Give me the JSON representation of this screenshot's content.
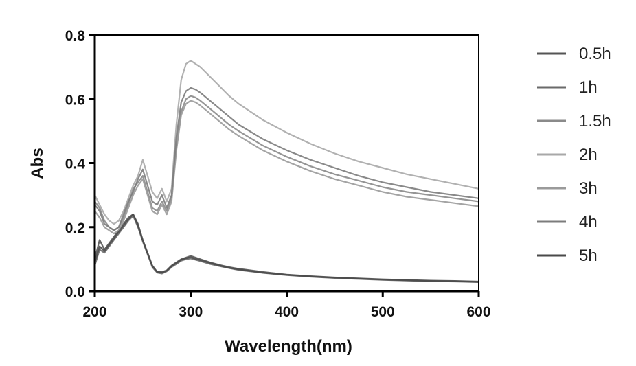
{
  "chart_data": {
    "type": "line",
    "title": "",
    "xlabel": "Wavelength(nm)",
    "ylabel": "Abs",
    "xlim": [
      200,
      600
    ],
    "ylim": [
      0.0,
      0.8
    ],
    "xticks": [
      200,
      300,
      400,
      500,
      600
    ],
    "xtick_labels": [
      "200",
      "300",
      "400",
      "500",
      "600"
    ],
    "yticks": [
      0.0,
      0.2,
      0.4,
      0.6,
      0.8
    ],
    "ytick_labels": [
      "0.0",
      "0.2",
      "0.4",
      "0.6",
      "0.8"
    ],
    "grid": false,
    "legend_position": "right",
    "x": [
      200,
      205,
      210,
      215,
      220,
      225,
      230,
      235,
      240,
      245,
      250,
      255,
      260,
      265,
      270,
      275,
      280,
      285,
      290,
      295,
      300,
      305,
      310,
      320,
      330,
      340,
      350,
      375,
      400,
      425,
      450,
      475,
      500,
      525,
      550,
      575,
      600
    ],
    "series": [
      {
        "name": "0.5h",
        "color": "#555555",
        "values": [
          0.1,
          0.16,
          0.13,
          0.15,
          0.17,
          0.19,
          0.21,
          0.23,
          0.24,
          0.21,
          0.16,
          0.12,
          0.08,
          0.06,
          0.06,
          0.065,
          0.08,
          0.09,
          0.1,
          0.105,
          0.11,
          0.105,
          0.1,
          0.09,
          0.082,
          0.075,
          0.07,
          0.06,
          0.052,
          0.047,
          0.043,
          0.04,
          0.037,
          0.035,
          0.033,
          0.032,
          0.03
        ]
      },
      {
        "name": "1h",
        "color": "#6a6a6a",
        "values": [
          0.08,
          0.13,
          0.12,
          0.14,
          0.16,
          0.18,
          0.2,
          0.22,
          0.235,
          0.2,
          0.155,
          0.115,
          0.075,
          0.058,
          0.055,
          0.062,
          0.075,
          0.085,
          0.095,
          0.1,
          0.102,
          0.098,
          0.094,
          0.085,
          0.078,
          0.072,
          0.066,
          0.057,
          0.05,
          0.045,
          0.041,
          0.038,
          0.035,
          0.033,
          0.031,
          0.03,
          0.028
        ]
      },
      {
        "name": "1.5h",
        "color": "#8a8a8a",
        "values": [
          0.28,
          0.26,
          0.22,
          0.2,
          0.19,
          0.2,
          0.23,
          0.27,
          0.32,
          0.34,
          0.36,
          0.31,
          0.26,
          0.25,
          0.28,
          0.25,
          0.29,
          0.45,
          0.56,
          0.6,
          0.61,
          0.605,
          0.595,
          0.57,
          0.545,
          0.52,
          0.5,
          0.455,
          0.42,
          0.39,
          0.365,
          0.345,
          0.325,
          0.31,
          0.3,
          0.29,
          0.28
        ]
      },
      {
        "name": "2h",
        "color": "#a8a8a8",
        "values": [
          0.3,
          0.27,
          0.24,
          0.22,
          0.21,
          0.22,
          0.25,
          0.29,
          0.33,
          0.36,
          0.41,
          0.36,
          0.31,
          0.29,
          0.32,
          0.28,
          0.32,
          0.52,
          0.66,
          0.71,
          0.72,
          0.71,
          0.7,
          0.67,
          0.64,
          0.61,
          0.585,
          0.535,
          0.495,
          0.46,
          0.43,
          0.405,
          0.385,
          0.365,
          0.35,
          0.335,
          0.32
        ]
      },
      {
        "name": "3h",
        "color": "#9a9a9a",
        "values": [
          0.25,
          0.23,
          0.2,
          0.19,
          0.18,
          0.19,
          0.22,
          0.26,
          0.3,
          0.33,
          0.35,
          0.3,
          0.25,
          0.24,
          0.27,
          0.24,
          0.28,
          0.44,
          0.55,
          0.585,
          0.595,
          0.59,
          0.58,
          0.555,
          0.53,
          0.505,
          0.485,
          0.44,
          0.405,
          0.375,
          0.35,
          0.33,
          0.31,
          0.295,
          0.285,
          0.275,
          0.265
        ]
      },
      {
        "name": "4h",
        "color": "#7c7c7c",
        "values": [
          0.27,
          0.25,
          0.21,
          0.2,
          0.19,
          0.2,
          0.24,
          0.28,
          0.31,
          0.35,
          0.38,
          0.33,
          0.28,
          0.27,
          0.3,
          0.26,
          0.3,
          0.48,
          0.59,
          0.625,
          0.635,
          0.63,
          0.62,
          0.595,
          0.57,
          0.545,
          0.52,
          0.475,
          0.44,
          0.41,
          0.385,
          0.36,
          0.34,
          0.325,
          0.31,
          0.3,
          0.29
        ]
      },
      {
        "name": "5h",
        "color": "#4a4a4a",
        "values": [
          0.09,
          0.14,
          0.125,
          0.145,
          0.165,
          0.185,
          0.205,
          0.225,
          0.24,
          0.205,
          0.158,
          0.118,
          0.078,
          0.06,
          0.058,
          0.064,
          0.078,
          0.088,
          0.098,
          0.103,
          0.106,
          0.101,
          0.097,
          0.088,
          0.08,
          0.073,
          0.068,
          0.058,
          0.051,
          0.046,
          0.042,
          0.039,
          0.036,
          0.034,
          0.032,
          0.031,
          0.029
        ]
      }
    ]
  }
}
